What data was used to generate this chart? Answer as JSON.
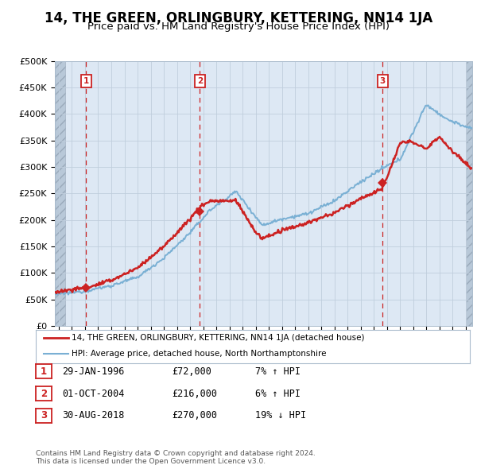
{
  "title": "14, THE GREEN, ORLINGBURY, KETTERING, NN14 1JA",
  "subtitle": "Price paid vs. HM Land Registry's House Price Index (HPI)",
  "title_fontsize": 12,
  "subtitle_fontsize": 9.5,
  "ylim": [
    0,
    500000
  ],
  "yticks": [
    0,
    50000,
    100000,
    150000,
    200000,
    250000,
    300000,
    350000,
    400000,
    450000,
    500000
  ],
  "ytick_labels": [
    "£0",
    "£50K",
    "£100K",
    "£150K",
    "£200K",
    "£250K",
    "£300K",
    "£350K",
    "£400K",
    "£450K",
    "£500K"
  ],
  "xlim_start": 1993.7,
  "xlim_end": 2025.5,
  "hatch_left_end": 1994.5,
  "hatch_right_start": 2025.0,
  "hpi_color": "#7ab0d4",
  "price_color": "#cc2222",
  "sale_marker_color": "#cc2222",
  "sale_box_color": "#cc2222",
  "dashed_line_color": "#cc2222",
  "sales": [
    {
      "num": 1,
      "date_num": 1996.08,
      "price": 72000,
      "label": "29-JAN-1996",
      "price_str": "£72,000",
      "pct": "7%",
      "dir": "↑"
    },
    {
      "num": 2,
      "date_num": 2004.75,
      "price": 216000,
      "label": "01-OCT-2004",
      "price_str": "£216,000",
      "pct": "6%",
      "dir": "↑"
    },
    {
      "num": 3,
      "date_num": 2018.66,
      "price": 270000,
      "label": "30-AUG-2018",
      "price_str": "£270,000",
      "pct": "19%",
      "dir": "↓"
    }
  ],
  "legend_entries": [
    {
      "label": "14, THE GREEN, ORLINGBURY, KETTERING, NN14 1JA (detached house)",
      "color": "#cc2222",
      "lw": 2.0
    },
    {
      "label": "HPI: Average price, detached house, North Northamptonshire",
      "color": "#7ab0d4",
      "lw": 1.5
    }
  ],
  "footer": "Contains HM Land Registry data © Crown copyright and database right 2024.\nThis data is licensed under the Open Government Licence v3.0.",
  "chart_bg": "#dde8f4",
  "hatch_color": "#b8c8d8",
  "grid_color": "#c0cedd"
}
